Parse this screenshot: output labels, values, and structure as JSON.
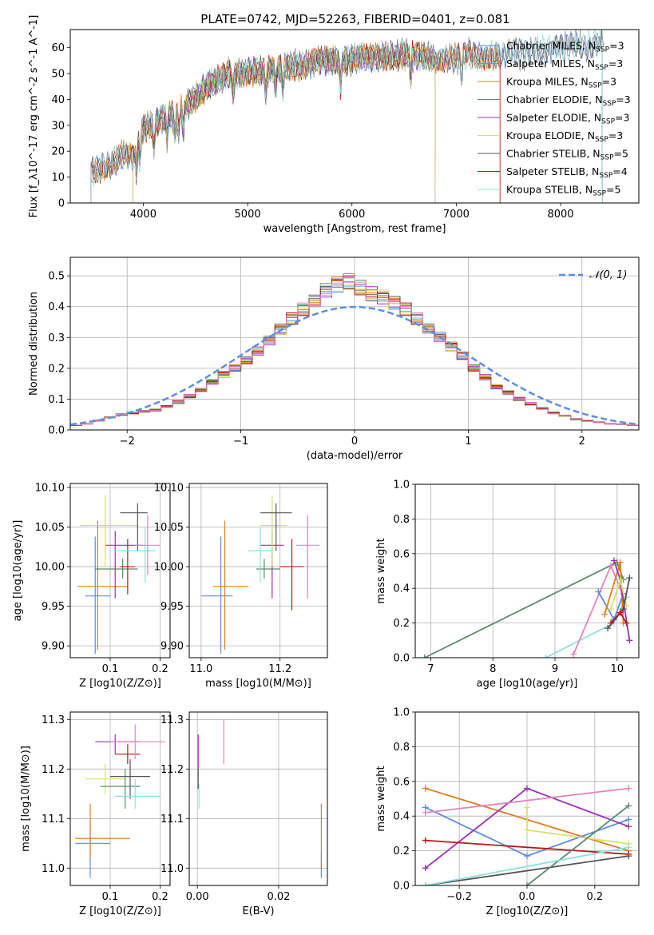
{
  "colors": {
    "series": [
      "#5b8fde",
      "#e07d1f",
      "#c98b2e",
      "#5b8c6b",
      "#9b30b6",
      "#d6e06a",
      "#555555",
      "#b51a1a",
      "#8ee0e0"
    ],
    "pink": "#e384c0",
    "normal_curve": "#5b8fde",
    "grid": "#b0b0b0"
  },
  "chart_data": [
    {
      "id": "spectrum",
      "type": "line",
      "title": "PLATE=0742, MJD=52263, FIBERID=0401, z=0.081",
      "xlabel": "wavelength [Angstrom, rest frame]",
      "ylabel": "Flux [f_λ10^-17 erg cm^-2 s^-1 A^-1]",
      "xlim": [
        3300,
        8750
      ],
      "ylim": [
        0,
        67
      ],
      "xticks": [
        4000,
        5000,
        6000,
        7000,
        8000
      ],
      "yticks": [
        0,
        10,
        20,
        30,
        40,
        50,
        60
      ],
      "grid": false,
      "legend_position": "top-right",
      "legend": [
        "Chabrier MILES, N_SSP=3",
        "Salpeter MILES, N_SSP=3",
        "Kroupa MILES, N_SSP=3",
        "Chabrier ELODIE, N_SSP=3",
        "Salpeter ELODIE, N_SSP=3",
        "Kroupa ELODIE, N_SSP=3",
        "Chabrier STELIB, N_SSP=5",
        "Salpeter STELIB, N_SSP=4",
        "Kroupa STELIB, N_SSP=5"
      ],
      "continuum": {
        "x": [
          3500,
          3600,
          3700,
          3800,
          3900,
          4000,
          4100,
          4200,
          4300,
          4400,
          4500,
          4600,
          4700,
          4800,
          4900,
          5000,
          5100,
          5200,
          5300,
          5400,
          5500,
          5600,
          5700,
          5800,
          5900,
          6000,
          6200,
          6400,
          6600,
          6800,
          7000,
          7200,
          7400,
          7600,
          7800,
          8000,
          8200,
          8400
        ],
        "y": [
          12,
          14,
          16,
          18,
          17,
          29,
          31,
          33,
          34,
          37,
          41,
          45,
          47,
          49,
          50,
          51,
          51,
          51,
          52,
          53,
          53,
          54,
          55,
          55,
          55,
          56,
          56,
          57,
          57,
          56,
          56,
          57,
          57,
          58,
          59,
          60,
          61,
          62
        ]
      },
      "absorption_lines": [
        3934,
        3969,
        4102,
        4226,
        4304,
        4340,
        4384,
        4861,
        5175,
        5270,
        5335,
        5890,
        6563,
        7050
      ],
      "fit_ranges": [
        {
          "series": 0,
          "x": [
            3500,
            8400
          ]
        },
        {
          "series": 1,
          "x": [
            3500,
            7420
          ]
        },
        {
          "series": 2,
          "x": [
            3500,
            7420
          ]
        },
        {
          "series": 3,
          "x": [
            3900,
            6800
          ]
        },
        {
          "series": 4,
          "x": [
            3900,
            6800
          ]
        },
        {
          "series": 5,
          "x": [
            3900,
            6800
          ]
        },
        {
          "series": 6,
          "x": [
            3500,
            8400
          ]
        },
        {
          "series": 7,
          "x": [
            3500,
            7420
          ]
        },
        {
          "series": 8,
          "x": [
            3500,
            8400
          ]
        }
      ],
      "data_line": {
        "x": [
          3520,
          8420
        ],
        "color": "#888888"
      }
    },
    {
      "id": "residual_histogram",
      "type": "step",
      "xlabel": "(data-model)/error",
      "ylabel": "Normed distribution",
      "xlim": [
        -2.5,
        2.5
      ],
      "ylim": [
        0,
        0.56
      ],
      "xticks": [
        -2,
        -1,
        0,
        1,
        2
      ],
      "yticks": [
        0.0,
        0.1,
        0.2,
        0.3,
        0.4,
        0.5
      ],
      "grid": true,
      "legend": [
        "𝒩(0, 1)"
      ],
      "legend_position": "top-right",
      "bins": {
        "start": -2.5,
        "width": 0.1,
        "count": 50
      },
      "base_values": [
        0.015,
        0.02,
        0.03,
        0.04,
        0.05,
        0.055,
        0.06,
        0.065,
        0.075,
        0.09,
        0.11,
        0.13,
        0.155,
        0.18,
        0.2,
        0.225,
        0.255,
        0.29,
        0.325,
        0.36,
        0.39,
        0.42,
        0.45,
        0.47,
        0.48,
        0.46,
        0.44,
        0.43,
        0.41,
        0.39,
        0.36,
        0.33,
        0.3,
        0.27,
        0.24,
        0.2,
        0.17,
        0.14,
        0.12,
        0.1,
        0.085,
        0.07,
        0.055,
        0.045,
        0.035,
        0.03,
        0.025,
        0.02,
        0.018,
        0.015
      ],
      "jitter": [
        0.0,
        0.03,
        -0.02,
        0.02,
        -0.03,
        0.01,
        0.04,
        -0.01,
        0.025,
        -0.035
      ]
    },
    {
      "id": "age_vs_Z",
      "type": "errorbar",
      "xlabel": "Z [log10(Z/Z⊙)]",
      "ylabel": "age  [log10(age/yr)]",
      "xlim": [
        0.02,
        0.22
      ],
      "ylim": [
        9.885,
        10.105
      ],
      "xticks": [
        0.1,
        0.2
      ],
      "yticks": [
        9.9,
        9.95,
        10.0,
        10.05,
        10.1
      ],
      "grid": true,
      "points": [
        {
          "c": 0,
          "x": 0.07,
          "y": 9.963,
          "xerr": [
            0.05,
            0.1
          ],
          "yerr": [
            9.89,
            10.038
          ]
        },
        {
          "c": 1,
          "x": 0.075,
          "y": 9.975,
          "xerr": [
            0.035,
            0.135
          ],
          "yerr": [
            9.895,
            10.058
          ]
        },
        {
          "c": 3,
          "x": 0.125,
          "y": 9.997,
          "xerr": [
            0.07,
            0.155
          ],
          "yerr": [
            9.985,
            10.01
          ]
        },
        {
          "c": 4,
          "x": 0.11,
          "y": 10.027,
          "xerr": [
            0.09,
            0.165
          ],
          "yerr": [
            9.96,
            10.045
          ]
        },
        {
          "c": 5,
          "x": 0.09,
          "y": 10.052,
          "xerr": [
            0.04,
            0.155
          ],
          "yerr": [
            10.0,
            10.09
          ]
        },
        {
          "c": 6,
          "x": 0.155,
          "y": 10.068,
          "xerr": [
            0.12,
            0.175
          ],
          "yerr": [
            10.02,
            10.08
          ]
        },
        {
          "c": 7,
          "x": 0.135,
          "y": 10.0,
          "xerr": [
            0.12,
            0.15
          ],
          "yerr": [
            9.965,
            10.035
          ]
        },
        {
          "c": 8,
          "x": 0.17,
          "y": 10.02,
          "xerr": [
            0.11,
            0.19
          ],
          "yerr": [
            9.98,
            10.05
          ]
        },
        {
          "c": 9,
          "x": 0.175,
          "y": 10.027,
          "xerr": [
            0.15,
            0.2
          ],
          "yerr": [
            9.99,
            10.065
          ]
        }
      ]
    },
    {
      "id": "age_vs_mass",
      "type": "errorbar",
      "xlabel": "mass [log10(M/M⊙)]",
      "ylabel": "",
      "xlim": [
        10.97,
        11.32
      ],
      "ylim": [
        9.885,
        10.105
      ],
      "xticks": [
        11.0,
        11.2
      ],
      "yticks": [
        9.9,
        9.95,
        10.0,
        10.05,
        10.1
      ],
      "grid": true,
      "points": [
        {
          "c": 0,
          "x": 11.05,
          "y": 9.963,
          "xerr": [
            11.0,
            11.08
          ],
          "yerr": [
            9.89,
            10.038
          ]
        },
        {
          "c": 1,
          "x": 11.06,
          "y": 9.975,
          "xerr": [
            11.03,
            11.12
          ],
          "yerr": [
            9.895,
            10.058
          ]
        },
        {
          "c": 3,
          "x": 11.16,
          "y": 9.997,
          "xerr": [
            11.14,
            11.2
          ],
          "yerr": [
            9.985,
            10.01
          ]
        },
        {
          "c": 4,
          "x": 11.18,
          "y": 10.027,
          "xerr": [
            11.15,
            11.21
          ],
          "yerr": [
            9.96,
            10.045
          ]
        },
        {
          "c": 5,
          "x": 11.18,
          "y": 10.052,
          "xerr": [
            11.15,
            11.22
          ],
          "yerr": [
            10.0,
            10.09
          ]
        },
        {
          "c": 6,
          "x": 11.19,
          "y": 10.068,
          "xerr": [
            11.15,
            11.23
          ],
          "yerr": [
            10.02,
            10.08
          ]
        },
        {
          "c": 7,
          "x": 11.23,
          "y": 10.0,
          "xerr": [
            11.2,
            11.26
          ],
          "yerr": [
            9.945,
            10.035
          ]
        },
        {
          "c": 8,
          "x": 11.15,
          "y": 10.02,
          "xerr": [
            11.12,
            11.18
          ],
          "yerr": [
            9.98,
            10.05
          ]
        },
        {
          "c": 9,
          "x": 11.27,
          "y": 10.027,
          "xerr": [
            11.24,
            11.3
          ],
          "yerr": [
            9.96,
            10.065
          ]
        }
      ]
    },
    {
      "id": "mass_weight_vs_age",
      "type": "line",
      "xlabel": "age  [log10(age/yr)]",
      "ylabel": "mass weight",
      "xlim": [
        6.75,
        10.35
      ],
      "ylim": [
        0.0,
        1.0
      ],
      "xticks": [
        7,
        8,
        9,
        10
      ],
      "yticks": [
        0.0,
        0.2,
        0.4,
        0.6,
        0.8,
        1.0
      ],
      "grid": true,
      "series": [
        {
          "c": 3,
          "x": [
            6.9,
            10.0,
            10.1
          ],
          "y": [
            0.0,
            0.55,
            0.45
          ]
        },
        {
          "c": 8,
          "x": [
            8.85,
            9.95,
            10.15
          ],
          "y": [
            0.0,
            0.2,
            0.35
          ]
        },
        {
          "c": 9,
          "x": [
            9.3,
            9.9,
            10.05
          ],
          "y": [
            0.02,
            0.53,
            0.4
          ]
        },
        {
          "c": 0,
          "x": [
            9.7,
            9.95,
            10.1
          ],
          "y": [
            0.38,
            0.22,
            0.37
          ]
        },
        {
          "c": 1,
          "x": [
            9.8,
            10.05,
            10.1
          ],
          "y": [
            0.25,
            0.55,
            0.2
          ]
        },
        {
          "c": 4,
          "x": [
            9.95,
            10.05,
            10.2
          ],
          "y": [
            0.56,
            0.45,
            0.1
          ]
        },
        {
          "c": 5,
          "x": [
            9.9,
            10.05,
            10.15
          ],
          "y": [
            0.28,
            0.45,
            0.3
          ]
        },
        {
          "c": 6,
          "x": [
            9.85,
            10.1,
            10.2
          ],
          "y": [
            0.17,
            0.28,
            0.46
          ]
        },
        {
          "c": 7,
          "x": [
            9.9,
            10.05,
            10.15
          ],
          "y": [
            0.2,
            0.26,
            0.2
          ]
        }
      ]
    },
    {
      "id": "mass_vs_Z",
      "type": "errorbar",
      "xlabel": "Z [log10(Z/Z⊙)]",
      "ylabel": "mass [log10(M/M⊙)]",
      "xlim": [
        0.02,
        0.22
      ],
      "ylim": [
        10.965,
        11.315
      ],
      "xticks": [
        0.1,
        0.2
      ],
      "yticks": [
        11.0,
        11.1,
        11.2,
        11.3
      ],
      "grid": true,
      "points": [
        {
          "c": 0,
          "x": 0.06,
          "y": 11.05,
          "xerr": [
            0.03,
            0.1
          ],
          "yerr": [
            10.98,
            11.1
          ]
        },
        {
          "c": 1,
          "x": 0.06,
          "y": 11.06,
          "xerr": [
            0.03,
            0.14
          ],
          "yerr": [
            11.02,
            11.13
          ]
        },
        {
          "c": 5,
          "x": 0.09,
          "y": 11.18,
          "xerr": [
            0.05,
            0.13
          ],
          "yerr": [
            11.15,
            11.21
          ]
        },
        {
          "c": 6,
          "x": 0.14,
          "y": 11.185,
          "xerr": [
            0.1,
            0.18
          ],
          "yerr": [
            11.14,
            11.22
          ]
        },
        {
          "c": 3,
          "x": 0.13,
          "y": 11.165,
          "xerr": [
            0.08,
            0.16
          ],
          "yerr": [
            11.12,
            11.2
          ]
        },
        {
          "c": 8,
          "x": 0.15,
          "y": 11.145,
          "xerr": [
            0.11,
            0.2
          ],
          "yerr": [
            11.12,
            11.18
          ]
        },
        {
          "c": 4,
          "x": 0.11,
          "y": 11.255,
          "xerr": [
            0.07,
            0.16
          ],
          "yerr": [
            11.23,
            11.27
          ]
        },
        {
          "c": 7,
          "x": 0.135,
          "y": 11.23,
          "xerr": [
            0.11,
            0.16
          ],
          "yerr": [
            11.21,
            11.25
          ]
        },
        {
          "c": 9,
          "x": 0.15,
          "y": 11.255,
          "xerr": [
            0.1,
            0.21
          ],
          "yerr": [
            11.22,
            11.29
          ]
        }
      ]
    },
    {
      "id": "mass_vs_ebv",
      "type": "errorbar",
      "xlabel": "E(B-V)",
      "ylabel": "",
      "xlim": [
        -0.002,
        0.032
      ],
      "ylim": [
        10.965,
        11.315
      ],
      "xticks": [
        0.0,
        0.02
      ],
      "yticks": [
        11.0,
        11.1,
        11.2,
        11.3
      ],
      "grid": true,
      "points": [
        {
          "c": 0,
          "x": 0.0305,
          "y": 11.0,
          "xerr": [
            0.0305,
            0.0305
          ],
          "yerr": [
            10.98,
            11.03
          ]
        },
        {
          "c": 1,
          "x": 0.0305,
          "y": 11.06,
          "xerr": [
            0.0305,
            0.0305
          ],
          "yerr": [
            11.0,
            11.13
          ]
        },
        {
          "c": 4,
          "x": 0.0002,
          "y": 11.24,
          "xerr": [
            0.0002,
            0.0002
          ],
          "yerr": [
            11.2,
            11.27
          ]
        },
        {
          "c": 9,
          "x": 0.0065,
          "y": 11.26,
          "xerr": [
            0.0065,
            0.0065
          ],
          "yerr": [
            11.21,
            11.3
          ]
        },
        {
          "c": 8,
          "x": 0.0004,
          "y": 11.14,
          "xerr": [
            0.0004,
            0.0004
          ],
          "yerr": [
            11.12,
            11.17
          ]
        },
        {
          "c": 6,
          "x": 0.0002,
          "y": 11.18,
          "xerr": [
            0.0002,
            0.0002
          ],
          "yerr": [
            11.16,
            11.2
          ]
        }
      ]
    },
    {
      "id": "mass_weight_vs_Z",
      "type": "line",
      "xlabel": "Z [log10(Z/Z⊙)]",
      "ylabel": "mass weight",
      "xlim": [
        -0.33,
        0.33
      ],
      "ylim": [
        0.0,
        1.0
      ],
      "xticks": [
        -0.2,
        0.0,
        0.2
      ],
      "yticks": [
        0.0,
        0.2,
        0.4,
        0.6,
        0.8,
        1.0
      ],
      "grid": true,
      "series": [
        {
          "c": 1,
          "x": [
            -0.3,
            0.3
          ],
          "y": [
            0.56,
            0.2
          ]
        },
        {
          "c": 0,
          "x": [
            -0.3,
            0.0,
            0.3
          ],
          "y": [
            0.45,
            0.17,
            0.38
          ]
        },
        {
          "c": 4,
          "x": [
            -0.3,
            0.0,
            0.3
          ],
          "y": [
            0.1,
            0.56,
            0.34
          ]
        },
        {
          "c": 9,
          "x": [
            -0.3,
            0.3
          ],
          "y": [
            0.42,
            0.56
          ]
        },
        {
          "c": 7,
          "x": [
            -0.3,
            0.3
          ],
          "y": [
            0.26,
            0.18
          ]
        },
        {
          "c": 5,
          "x": [
            0.0,
            0.0,
            0.3
          ],
          "y": [
            0.45,
            0.32,
            0.24
          ]
        },
        {
          "c": 6,
          "x": [
            -0.3,
            0.3
          ],
          "y": [
            0.0,
            0.17
          ]
        },
        {
          "c": 3,
          "x": [
            0.0,
            0.3
          ],
          "y": [
            0.0,
            0.46
          ]
        },
        {
          "c": 8,
          "x": [
            -0.3,
            0.3
          ],
          "y": [
            0.0,
            0.22
          ]
        }
      ]
    }
  ]
}
